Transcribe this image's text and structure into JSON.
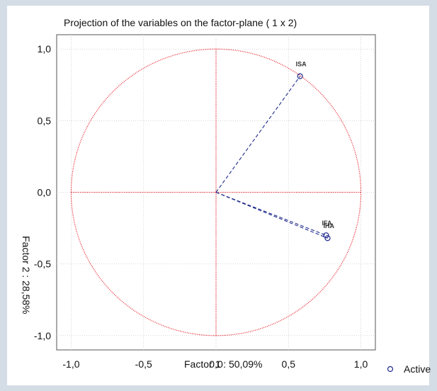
{
  "chart_data": {
    "type": "scatter",
    "title": "Projection of the variables on the factor-plane (  1 x   2)",
    "xlabel": "Factor 1 : 50,09%",
    "ylabel": "Factor 2 : 28,58%",
    "xlim": [
      -1.1,
      1.1
    ],
    "ylim": [
      -1.1,
      1.1
    ],
    "xticks": [
      "-1,0",
      "-0,5",
      "0,0",
      "0,5",
      "1,0"
    ],
    "yticks": [
      "1,0",
      "0,5",
      "0,0",
      "-0,5",
      "-1,0"
    ],
    "grid": true,
    "unit_circle": true,
    "legend": {
      "label": "Active",
      "position": "bottom-right"
    },
    "series": [
      {
        "name": "Active",
        "points": [
          {
            "label": "ISA",
            "x": 0.58,
            "y": 0.81
          },
          {
            "label": "IFA",
            "x": 0.76,
            "y": -0.3
          },
          {
            "label": "IHA",
            "x": 0.77,
            "y": -0.32
          }
        ]
      }
    ],
    "colors": {
      "circle": "#e8101a",
      "vectors": "#1f2a8c",
      "points": "#1f2a8c",
      "grid": "#c8c8c8",
      "background": "#d4dce6"
    }
  }
}
